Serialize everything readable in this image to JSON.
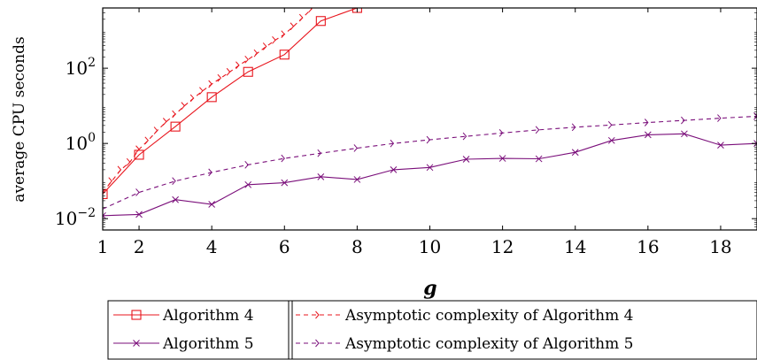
{
  "chart_data": {
    "type": "line",
    "title": "",
    "xlabel": "g",
    "ylabel": "average CPU seconds",
    "yscale": "log",
    "xlim": [
      1,
      19
    ],
    "ylim": [
      0.005,
      4000
    ],
    "xticks": [
      {
        "value": 1,
        "label": "1"
      },
      {
        "value": 2,
        "label": "2"
      },
      {
        "value": 4,
        "label": "4"
      },
      {
        "value": 6,
        "label": "6"
      },
      {
        "value": 8,
        "label": "8"
      },
      {
        "value": 10,
        "label": "10"
      },
      {
        "value": 12,
        "label": "12"
      },
      {
        "value": 14,
        "label": "14"
      },
      {
        "value": 16,
        "label": "16"
      },
      {
        "value": 18,
        "label": "18"
      }
    ],
    "yticks": [
      {
        "value": 0.01,
        "base": "10",
        "exp": "−2"
      },
      {
        "value": 1,
        "base": "10",
        "exp": "0"
      },
      {
        "value": 100,
        "base": "10",
        "exp": "2"
      }
    ],
    "grid": false,
    "legend_position": "bottom",
    "series": [
      {
        "name": "Algorithm 4",
        "color": "#e8141c",
        "style": "solid",
        "marker": "square",
        "x": [
          1,
          2,
          3,
          4,
          5,
          6,
          7,
          8
        ],
        "y": [
          0.045,
          0.5,
          2.8,
          17,
          80,
          230,
          1800,
          4000
        ]
      },
      {
        "name": "Algorithm 5",
        "color": "#7a0e7a",
        "style": "solid",
        "marker": "x",
        "x": [
          1,
          2,
          3,
          4,
          5,
          6,
          7,
          8,
          9,
          10,
          11,
          12,
          13,
          14,
          15,
          16,
          17,
          18,
          19
        ],
        "y": [
          0.012,
          0.013,
          0.032,
          0.024,
          0.08,
          0.09,
          0.13,
          0.11,
          0.2,
          0.23,
          0.38,
          0.4,
          0.39,
          0.58,
          1.2,
          1.7,
          1.8,
          0.9,
          1.0
        ]
      },
      {
        "name": "Asymptotic complexity of Algorithm 4",
        "color": "#e8141c",
        "style": "dashed",
        "marker": "arrowhead",
        "x": [
          1,
          1.25,
          1.5,
          1.75,
          2,
          2.25,
          2.5,
          2.75,
          3,
          3.25,
          3.5,
          3.75,
          4,
          4.25,
          4.5,
          4.75,
          5,
          5.25,
          5.5,
          5.75,
          6,
          6.25,
          6.5,
          6.75
        ],
        "y": [
          0.05,
          0.1,
          0.2,
          0.32,
          0.7,
          1.2,
          2.2,
          3.8,
          6,
          10,
          16,
          25,
          38,
          55,
          80,
          120,
          170,
          250,
          380,
          560,
          800,
          1300,
          2200,
          3800
        ]
      },
      {
        "name": "Asymptotic complexity of Algorithm 5",
        "color": "#7a0e7a",
        "style": "dashed",
        "marker": "arrowhead",
        "x": [
          1,
          2,
          3,
          4,
          5,
          6,
          7,
          8,
          9,
          10,
          11,
          12,
          13,
          14,
          15,
          16,
          17,
          18,
          19
        ],
        "y": [
          0.018,
          0.05,
          0.1,
          0.17,
          0.27,
          0.4,
          0.55,
          0.75,
          1.0,
          1.25,
          1.55,
          1.9,
          2.3,
          2.7,
          3.1,
          3.6,
          4.1,
          4.7,
          5.3
        ]
      }
    ],
    "legend": [
      {
        "label": "Algorithm 4",
        "series": 0
      },
      {
        "label": "Asymptotic complexity of Algorithm 4",
        "series": 2
      },
      {
        "label": "Algorithm 5",
        "series": 1
      },
      {
        "label": "Asymptotic complexity of Algorithm 5",
        "series": 3
      }
    ]
  }
}
